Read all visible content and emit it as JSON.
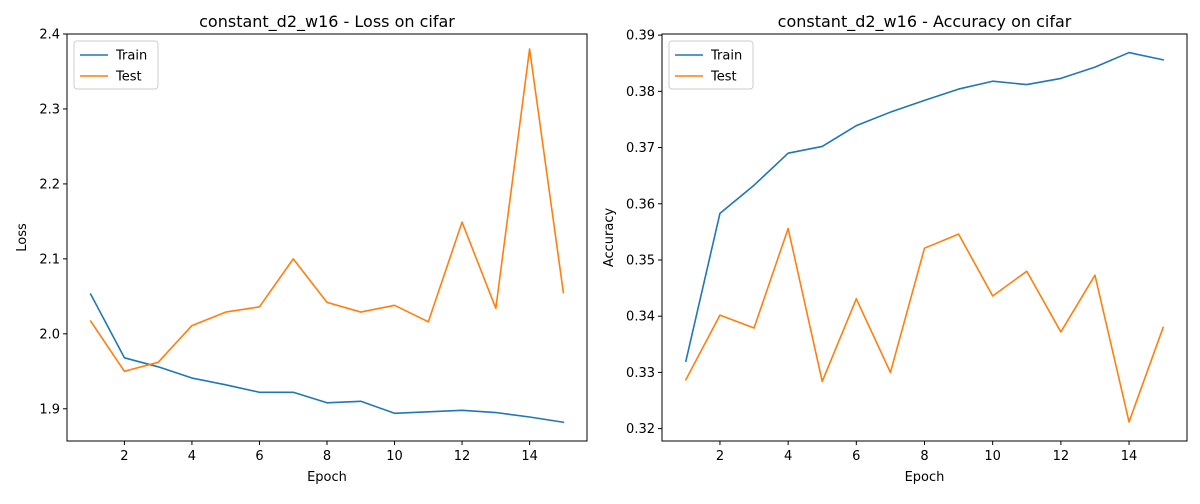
{
  "chart_data": [
    {
      "type": "line",
      "title": "constant_d2_w16 - Loss on cifar",
      "xlabel": "Epoch",
      "ylabel": "Loss",
      "x": [
        1,
        2,
        3,
        4,
        5,
        6,
        7,
        8,
        9,
        10,
        11,
        12,
        13,
        14,
        15
      ],
      "xlim": [
        0.3,
        15.7
      ],
      "ylim": [
        1.857,
        2.4
      ],
      "xticks": [
        2,
        4,
        6,
        8,
        10,
        12,
        14
      ],
      "xtick_labels": [
        "2",
        "4",
        "6",
        "8",
        "10",
        "12",
        "14"
      ],
      "yticks": [
        1.9,
        2.0,
        2.1,
        2.2,
        2.3,
        2.4
      ],
      "ytick_labels": [
        "1.9",
        "2.0",
        "2.1",
        "2.2",
        "2.3",
        "2.4"
      ],
      "grid": false,
      "legend": "top-left",
      "series": [
        {
          "name": "Train",
          "color": "#1f77b4",
          "values": [
            2.053,
            1.968,
            1.956,
            1.941,
            1.932,
            1.922,
            1.922,
            1.908,
            1.91,
            1.894,
            1.896,
            1.898,
            1.895,
            1.889,
            1.882
          ]
        },
        {
          "name": "Test",
          "color": "#ff7f0e",
          "values": [
            2.017,
            1.95,
            1.962,
            2.011,
            2.029,
            2.036,
            2.1,
            2.042,
            2.029,
            2.038,
            2.016,
            2.149,
            2.034,
            2.38,
            2.055
          ]
        }
      ]
    },
    {
      "type": "line",
      "title": "constant_d2_w16 - Accuracy on cifar",
      "xlabel": "Epoch",
      "ylabel": "Accuracy",
      "x": [
        1,
        2,
        3,
        4,
        5,
        6,
        7,
        8,
        9,
        10,
        11,
        12,
        13,
        14,
        15
      ],
      "xlim": [
        0.3,
        15.7
      ],
      "ylim": [
        0.3178,
        0.3902
      ],
      "xticks": [
        2,
        4,
        6,
        8,
        10,
        12,
        14
      ],
      "xtick_labels": [
        "2",
        "4",
        "6",
        "8",
        "10",
        "12",
        "14"
      ],
      "yticks": [
        0.32,
        0.33,
        0.34,
        0.35,
        0.36,
        0.37,
        0.38,
        0.39
      ],
      "ytick_labels": [
        "0.32",
        "0.33",
        "0.34",
        "0.35",
        "0.36",
        "0.37",
        "0.38",
        "0.39"
      ],
      "grid": false,
      "legend": "top-left",
      "series": [
        {
          "name": "Train",
          "color": "#1f77b4",
          "values": [
            0.332,
            0.3583,
            0.3633,
            0.369,
            0.3702,
            0.3739,
            0.3763,
            0.3784,
            0.3804,
            0.3818,
            0.3812,
            0.3823,
            0.3843,
            0.3869,
            0.3856
          ]
        },
        {
          "name": "Test",
          "color": "#ff7f0e",
          "values": [
            0.3287,
            0.3402,
            0.3379,
            0.3556,
            0.3284,
            0.3431,
            0.33,
            0.3521,
            0.3546,
            0.3436,
            0.348,
            0.3372,
            0.3473,
            0.3212,
            0.338
          ]
        }
      ]
    }
  ]
}
